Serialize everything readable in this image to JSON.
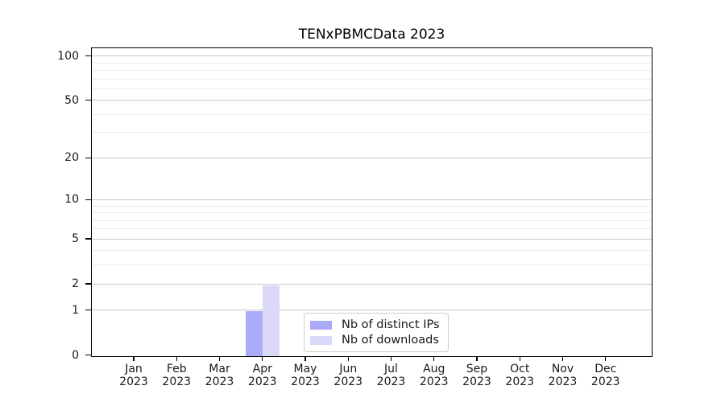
{
  "chart_data": {
    "type": "bar",
    "title": "TENxPBMCData 2023",
    "months": [
      "Jan",
      "Feb",
      "Mar",
      "Apr",
      "May",
      "Jun",
      "Jul",
      "Aug",
      "Sep",
      "Oct",
      "Nov",
      "Dec"
    ],
    "year_label": "2023",
    "series": [
      {
        "name": "Nb of distinct IPs",
        "color": "#aaaaf8",
        "values": [
          0,
          0,
          0,
          1,
          0,
          0,
          0,
          0,
          0,
          0,
          0,
          0
        ]
      },
      {
        "name": "Nb of downloads",
        "color": "#dadaf8",
        "values": [
          0,
          0,
          0,
          2,
          0,
          0,
          0,
          0,
          0,
          0,
          0,
          0
        ]
      }
    ],
    "y_axis": {
      "scale": "log1p",
      "major_ticks": [
        0,
        1,
        2,
        5,
        10,
        20,
        50,
        100
      ],
      "minor_ticks": [
        3,
        4,
        6,
        7,
        8,
        9,
        30,
        40,
        60,
        70,
        80,
        90
      ],
      "top_value": 113
    },
    "legend": {
      "entries": [
        "Nb of distinct IPs",
        "Nb of downloads"
      ],
      "position": "lower center"
    },
    "grid": true,
    "colors": {
      "major_grid": "#c9c9c9",
      "minor_grid": "#ececec",
      "axis": "#000000",
      "text": "#1a1a1a",
      "background": "#ffffff"
    }
  }
}
